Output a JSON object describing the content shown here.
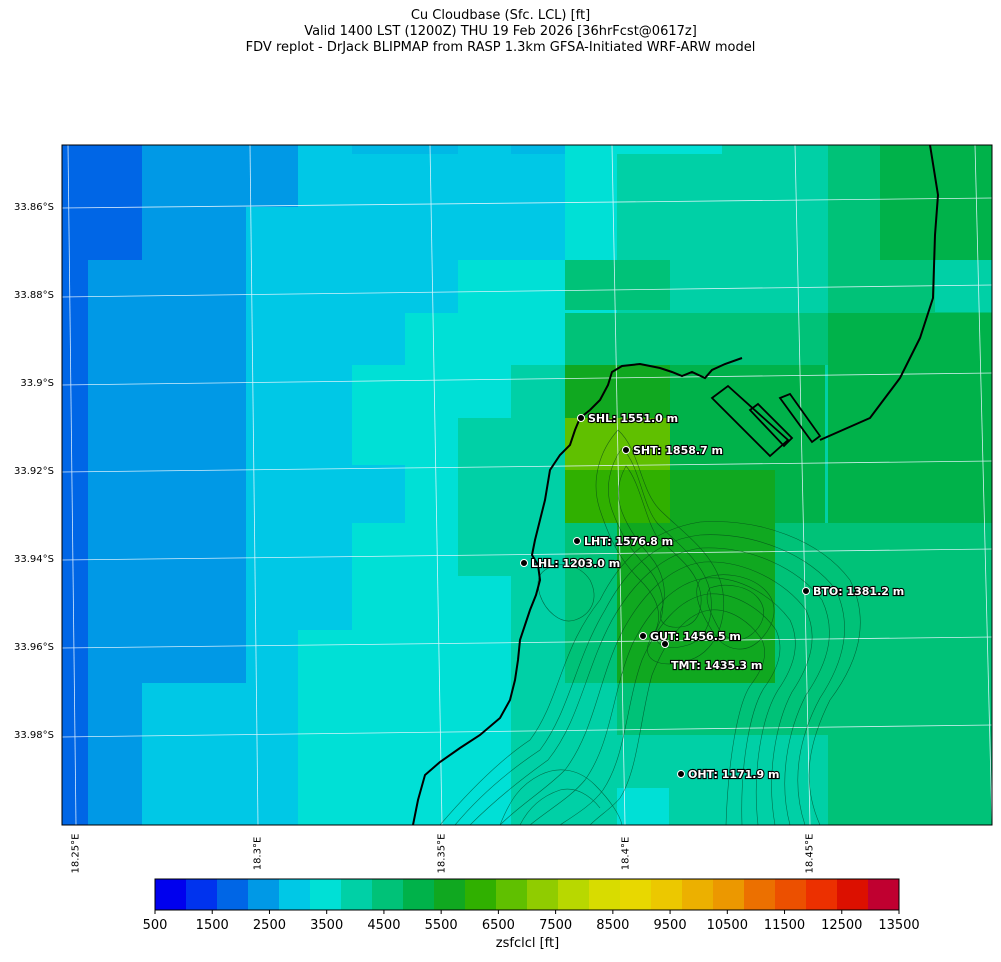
{
  "title": {
    "line1": "Cu Cloudbase (Sfc. LCL) [ft]",
    "line2": "Valid 1400 LST (1200Z) THU 19 Feb 2026 [36hrFcst@0617z]",
    "line3": "FDV replot - DrJack BLIPMAP from RASP 1.3km GFSA-Initiated WRF-ARW model"
  },
  "lat_labels": [
    "33.86°S",
    "33.88°S",
    "33.9°S",
    "33.92°S",
    "33.94°S",
    "33.96°S",
    "33.98°S"
  ],
  "lon_labels": [
    "18.25°E",
    "18.3°E",
    "18.35°E",
    "18.4°E",
    "18.45°E"
  ],
  "stations": [
    {
      "code": "SHL",
      "label": "SHL: 1551.0 m"
    },
    {
      "code": "SHT",
      "label": "SHT: 1858.7 m"
    },
    {
      "code": "LHT",
      "label": "LHT: 1576.8 m"
    },
    {
      "code": "LHL",
      "label": "LHL: 1203.0 m"
    },
    {
      "code": "BTO",
      "label": "BTO: 1381.2 m"
    },
    {
      "code": "GUT",
      "label": "GUT: 1456.5 m"
    },
    {
      "code": "TMT",
      "label": "TMT: 1435.3 m"
    },
    {
      "code": "OHT",
      "label": "OHT: 1171.9 m"
    }
  ],
  "colorbar": {
    "label": "zsfclcl [ft]",
    "ticks": [
      "500",
      "1500",
      "2500",
      "3500",
      "4500",
      "5500",
      "6500",
      "7500",
      "8500",
      "9500",
      "10500",
      "11500",
      "12500",
      "13500"
    ],
    "colors": [
      "#0000ee",
      "#0033ee",
      "#0066e6",
      "#0099e6",
      "#00c8e6",
      "#00e0d6",
      "#00d0a6",
      "#00c278",
      "#00b24a",
      "#10a820",
      "#30b000",
      "#60c000",
      "#90cc00",
      "#b8d800",
      "#d8dc00",
      "#e8d800",
      "#ecc800",
      "#ecb000",
      "#ec9800",
      "#ec7000",
      "#ec5000",
      "#ec3000",
      "#dc1000",
      "#c00030"
    ]
  },
  "field_colors": {
    "deep_blue": "#0066e6",
    "blue": "#0099e6",
    "light_blue": "#00c8e6",
    "cyan": "#00e0d6",
    "teal": "#00d0a6",
    "green_light": "#00c278",
    "green": "#00b24a",
    "green_dark": "#10a820",
    "yellow_green": "#60c000",
    "olive": "#30b000"
  }
}
